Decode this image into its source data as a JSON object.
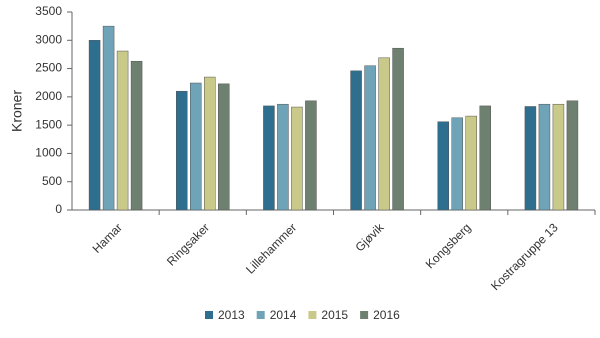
{
  "chart_data": {
    "type": "bar",
    "y_label": "Kroner",
    "categories": [
      "Hamar",
      "Ringsaker",
      "Lillehammer",
      "Gjøvik",
      "Kongsberg",
      "Kostragruppe 13"
    ],
    "series": [
      {
        "name": "2013",
        "color": "#2e6e8e",
        "values": [
          3000,
          2100,
          1840,
          2460,
          1560,
          1830
        ]
      },
      {
        "name": "2014",
        "color": "#6fa3b8",
        "values": [
          3250,
          2245,
          1870,
          2550,
          1630,
          1870
        ]
      },
      {
        "name": "2015",
        "color": "#c9c98a",
        "values": [
          2810,
          2350,
          1820,
          2690,
          1660,
          1870
        ]
      },
      {
        "name": "2016",
        "color": "#6e8070",
        "values": [
          2630,
          2230,
          1930,
          2860,
          1840,
          1930
        ]
      }
    ],
    "ylim": [
      0,
      3500
    ],
    "yticks": [
      0,
      500,
      1000,
      1500,
      2000,
      2500,
      3000,
      3500
    ],
    "grid": false,
    "legend": "bottom"
  }
}
